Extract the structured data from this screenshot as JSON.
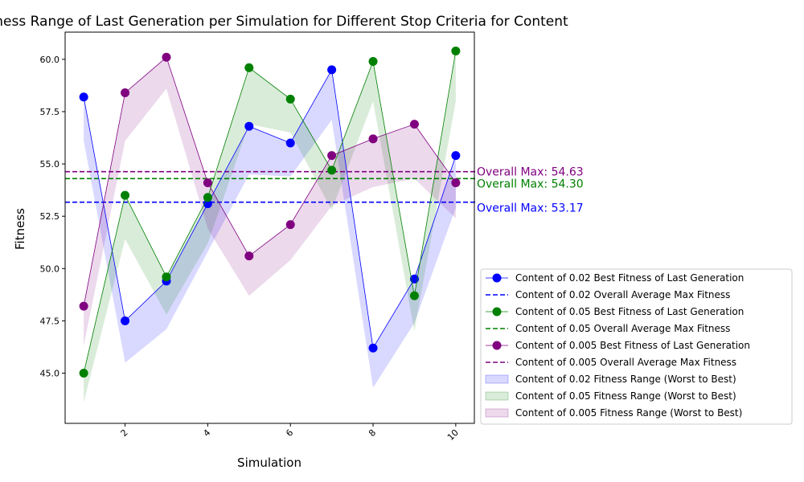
{
  "chart_data": {
    "type": "line",
    "title": "Fitness Range of Last Generation per Simulation for Different Stop Criteria for Content",
    "xlabel": "Simulation",
    "ylabel": "Fitness",
    "x": [
      1,
      2,
      3,
      4,
      5,
      6,
      7,
      8,
      9,
      10
    ],
    "xlim": [
      0.55,
      10.45
    ],
    "ylim": [
      42.6,
      61.3
    ],
    "xticks": [
      2,
      4,
      6,
      8,
      10
    ],
    "yticks": [
      45.0,
      47.5,
      50.0,
      52.5,
      55.0,
      57.5,
      60.0
    ],
    "ytick_labels": [
      "45.0",
      "47.5",
      "50.0",
      "52.5",
      "55.0",
      "57.5",
      "60.0"
    ],
    "series": [
      {
        "name": "Content of 0.02 Best Fitness of Last Generation",
        "color": "#0000ff",
        "best": [
          58.2,
          47.5,
          49.4,
          53.1,
          56.8,
          56.0,
          59.5,
          46.2,
          49.5,
          55.4
        ],
        "worst": [
          56.1,
          45.5,
          47.1,
          50.8,
          54.5,
          54.4,
          57.1,
          44.3,
          47.4,
          52.9
        ],
        "avg_label": "Content of 0.02 Overall Average Max Fitness",
        "range_label": "Content of 0.02 Fitness Range (Worst to Best)",
        "overall_max": 53.17,
        "annotation": "Overall Max: 53.17"
      },
      {
        "name": "Content of 0.05 Best Fitness of Last Generation",
        "color": "#008000",
        "best": [
          45.0,
          53.5,
          49.6,
          53.4,
          59.6,
          58.1,
          54.7,
          59.9,
          48.7,
          60.4
        ],
        "worst": [
          43.6,
          51.4,
          47.8,
          51.2,
          56.9,
          56.5,
          52.8,
          58.0,
          47.0,
          58.0
        ],
        "avg_label": "Content of 0.05 Overall Average Max Fitness",
        "range_label": "Content of 0.05 Fitness Range (Worst to Best)",
        "overall_max": 54.3,
        "annotation": "Overall Max: 54.30"
      },
      {
        "name": "Content of 0.005 Best Fitness of Last Generation",
        "color": "#800080",
        "best": [
          48.2,
          58.4,
          60.1,
          54.1,
          50.6,
          52.1,
          55.4,
          56.2,
          56.9,
          54.1
        ],
        "worst": [
          46.3,
          56.1,
          58.6,
          51.9,
          48.7,
          50.4,
          53.0,
          53.9,
          54.3,
          52.4
        ],
        "avg_label": "Content of 0.005 Overall Average Max Fitness",
        "range_label": "Content of 0.005 Fitness Range (Worst to Best)",
        "overall_max": 54.63,
        "annotation": "Overall Max: 54.63"
      }
    ],
    "legend_placement": "lower-right, outside plot"
  }
}
